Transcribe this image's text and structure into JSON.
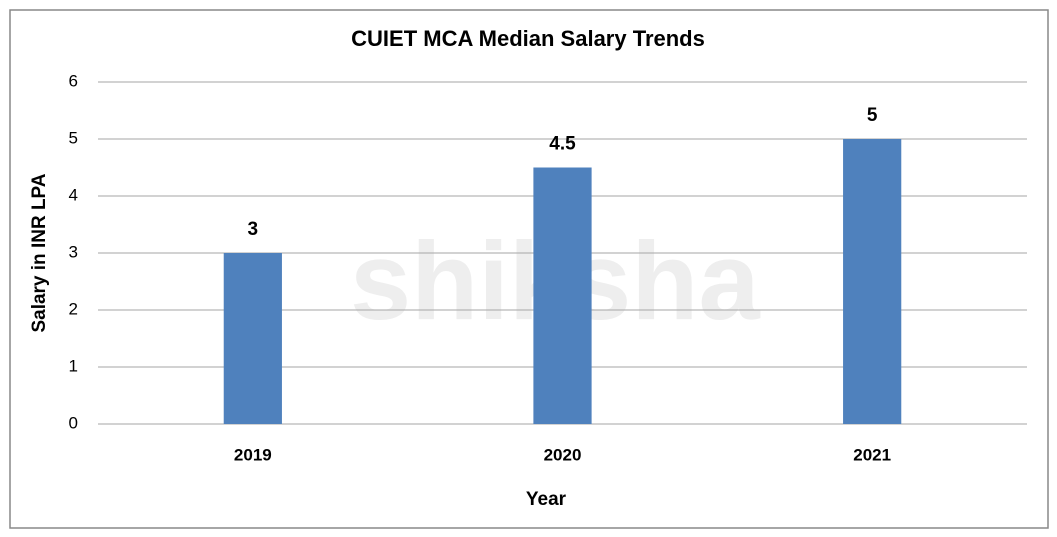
{
  "chart_data": {
    "type": "bar",
    "title": "CUIET MCA Median Salary Trends",
    "x_label": "Year",
    "y_label": "Salary in INR LPA",
    "watermark": "shiksha",
    "categories": [
      "2019",
      "2020",
      "2021"
    ],
    "values": [
      3,
      4.5,
      5
    ],
    "color": "#4f81bd",
    "ylim": [
      0,
      6
    ],
    "yticks": [
      0,
      1,
      2,
      3,
      4,
      5,
      6
    ],
    "grid": true
  }
}
